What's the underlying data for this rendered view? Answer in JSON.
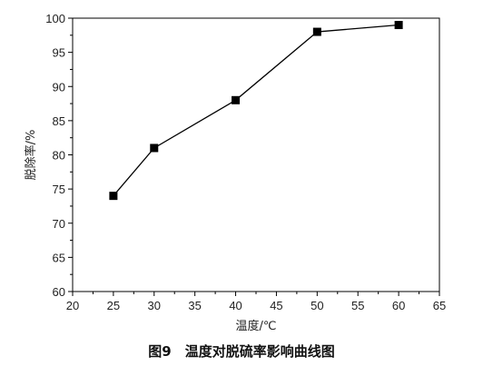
{
  "chart_data": {
    "type": "line",
    "title": "",
    "xlabel": "温度/℃",
    "ylabel": "脱除率/%",
    "xlim": [
      20,
      65
    ],
    "ylim": [
      60,
      100
    ],
    "xticks": [
      20,
      25,
      30,
      35,
      40,
      45,
      50,
      55,
      60,
      65
    ],
    "yticks": [
      60,
      65,
      70,
      75,
      80,
      85,
      90,
      95,
      100
    ],
    "grid": false,
    "legend": "none",
    "marker": "square",
    "series": [
      {
        "x": [
          25,
          30,
          40,
          50,
          60
        ],
        "y": [
          74,
          81,
          88,
          98,
          99
        ]
      }
    ]
  },
  "caption": "图9　温度对脱硫率影响曲线图"
}
